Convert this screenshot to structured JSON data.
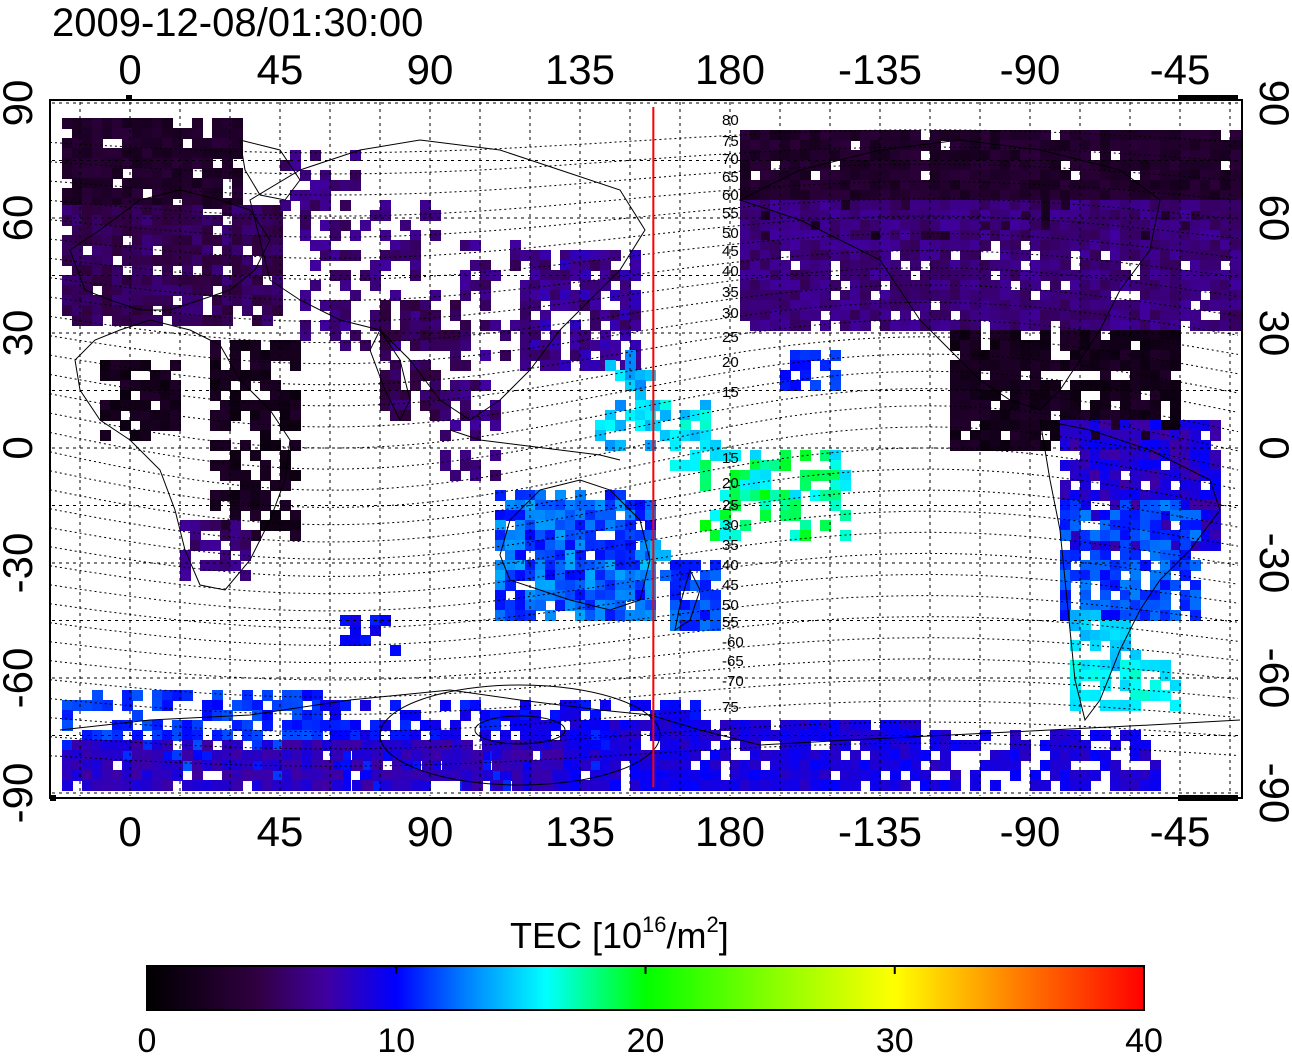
{
  "title": "2009-12-08/01:30:00",
  "x_ticks": [
    "0",
    "45",
    "90",
    "135",
    "180",
    "-135",
    "-90",
    "-45"
  ],
  "y_ticks": [
    "90",
    "60",
    "30",
    "0",
    "-30",
    "-60",
    "-90"
  ],
  "contour_labels": [
    "80",
    "75",
    "70",
    "65",
    "60",
    "55",
    "50",
    "45",
    "40",
    "35",
    "30",
    "25",
    "20",
    "15",
    "15",
    "20",
    "25",
    "30",
    "35",
    "40",
    "45",
    "50",
    "55",
    "-60",
    "-65",
    "-70",
    "75"
  ],
  "terminator_longitude": 157,
  "colorbar": {
    "label_main": "TEC  [10",
    "label_exp1": "16",
    "label_mid": "/m",
    "label_exp2": "2",
    "label_end": "]",
    "ticks": [
      "0",
      "10",
      "20",
      "30",
      "40"
    ],
    "min": 0,
    "max": 40,
    "colormap": [
      "#000000",
      "#300040",
      "#4000a0",
      "#0000ff",
      "#0080ff",
      "#00ffff",
      "#00ff00",
      "#ffff00",
      "#ff8000",
      "#ff0000"
    ]
  },
  "colors": {
    "terminator": "#ff0000",
    "grid": "#000000",
    "coastline": "#000000"
  }
}
